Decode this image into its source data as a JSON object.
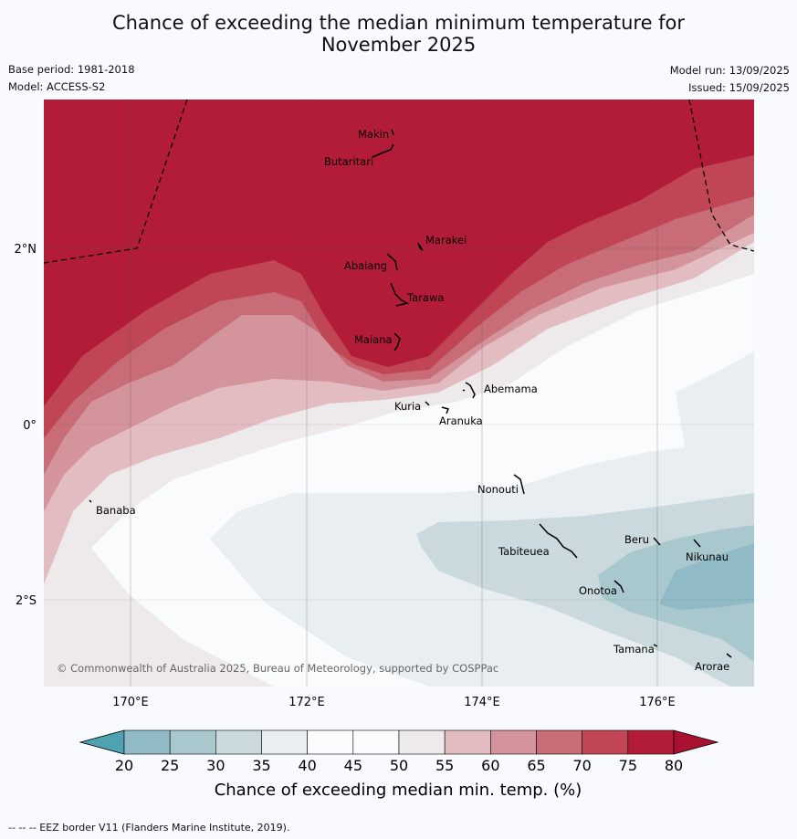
{
  "title": {
    "line1": "Chance of exceeding the median minimum temperature for",
    "line2": "November 2025"
  },
  "meta": {
    "base_period": "Base period: 1981-2018",
    "model": "Model: ACCESS-S2",
    "model_run": "Model run: 13/09/2025",
    "issued": "Issued: 15/09/2025"
  },
  "map": {
    "lat_labels": [
      "2°N",
      "0°",
      "2°S"
    ],
    "lon_labels": [
      "170°E",
      "172°E",
      "174°E",
      "176°E"
    ],
    "places": [
      {
        "id": "makin",
        "name": "Makin"
      },
      {
        "id": "butaritari",
        "name": "Butaritari"
      },
      {
        "id": "marakei",
        "name": "Marakei"
      },
      {
        "id": "abaiang",
        "name": "Abaiang"
      },
      {
        "id": "tarawa",
        "name": "Tarawa"
      },
      {
        "id": "maiana",
        "name": "Maiana"
      },
      {
        "id": "abemama",
        "name": "Abemama"
      },
      {
        "id": "kuria",
        "name": "Kuria"
      },
      {
        "id": "aranuka",
        "name": "Aranuka"
      },
      {
        "id": "banaba",
        "name": "Banaba"
      },
      {
        "id": "nonouti",
        "name": "Nonouti"
      },
      {
        "id": "beru",
        "name": "Beru"
      },
      {
        "id": "tabiteuea",
        "name": "Tabiteuea"
      },
      {
        "id": "nikunau",
        "name": "Nikunau"
      },
      {
        "id": "onotoa",
        "name": "Onotoa"
      },
      {
        "id": "tamana",
        "name": "Tamana"
      },
      {
        "id": "arorae",
        "name": "Arorae"
      }
    ],
    "copyright": "© Commonwealth of Australia 2025, Bureau of Meteorology, supported by COSPPac"
  },
  "colorbar": {
    "ticks": [
      "20",
      "25",
      "30",
      "35",
      "40",
      "45",
      "50",
      "55",
      "60",
      "65",
      "70",
      "75",
      "80"
    ],
    "colors": [
      "#6ab0bd",
      "#8fbac6",
      "#a9c8ce",
      "#c9d9de",
      "#e9eff0",
      "#fafbfd",
      "#fafbfd",
      "#eeeaeb",
      "#e3bcc2",
      "#d4949c",
      "#c86c77",
      "#c04656",
      "#b21c38"
    ],
    "label": "Chance of exceeding median min. temp. (%)"
  },
  "footer": "--  --  -- EEZ border V11 (Flanders Marine Institute, 2019)."
}
